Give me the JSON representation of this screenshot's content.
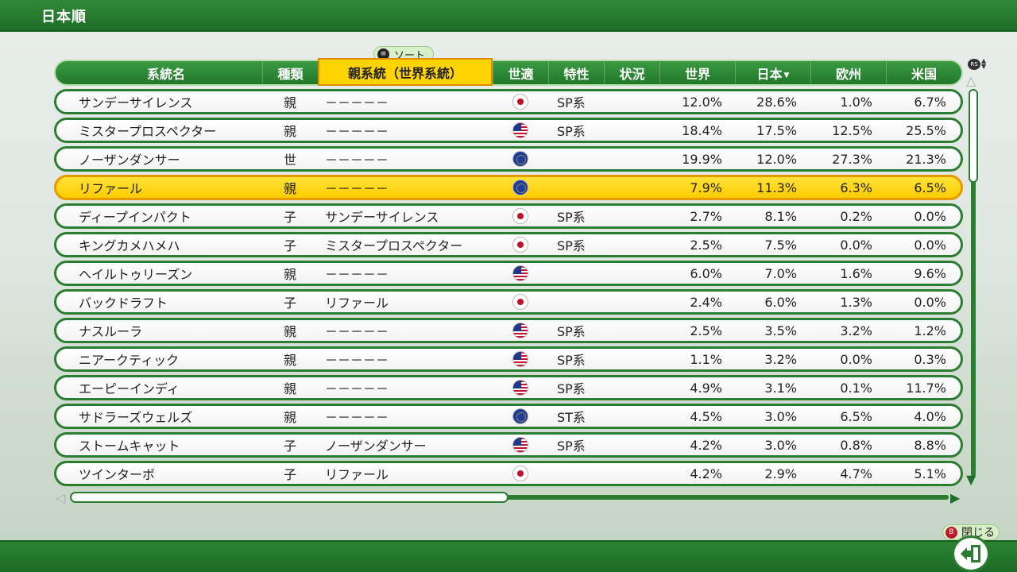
{
  "window": {
    "title": "日本順"
  },
  "sort_hint": {
    "label": "ソート",
    "button": "≡"
  },
  "columns": [
    "系統名",
    "種類",
    "親系統（世界系統）",
    "世適",
    "特性",
    "状況",
    "世界",
    "日本",
    "欧州",
    "米国"
  ],
  "sorted_column_index": 7,
  "sort_direction": "descending",
  "rows": [
    {
      "name": "サンデーサイレンス",
      "kind": "親",
      "parent": "－－－－－",
      "flag": "jp",
      "trait": "SP系",
      "world": "12.0%",
      "japan": "28.6%",
      "europe": "1.0%",
      "us": "6.7%"
    },
    {
      "name": "ミスタープロスペクター",
      "kind": "親",
      "parent": "－－－－－",
      "flag": "us",
      "trait": "SP系",
      "world": "18.4%",
      "japan": "17.5%",
      "europe": "12.5%",
      "us": "25.5%"
    },
    {
      "name": "ノーザンダンサー",
      "kind": "世",
      "parent": "－－－－－",
      "flag": "eu",
      "trait": "",
      "world": "19.9%",
      "japan": "12.0%",
      "europe": "27.3%",
      "us": "21.3%"
    },
    {
      "name": "リファール",
      "kind": "親",
      "parent": "－－－－－",
      "flag": "eu",
      "trait": "",
      "world": "7.9%",
      "japan": "11.3%",
      "europe": "6.3%",
      "us": "6.5%"
    },
    {
      "name": "ディープインパクト",
      "kind": "子",
      "parent": "サンデーサイレンス",
      "flag": "jp",
      "trait": "SP系",
      "world": "2.7%",
      "japan": "8.1%",
      "europe": "0.2%",
      "us": "0.0%"
    },
    {
      "name": "キングカメハメハ",
      "kind": "子",
      "parent": "ミスタープロスペクター",
      "flag": "jp",
      "trait": "SP系",
      "world": "2.5%",
      "japan": "7.5%",
      "europe": "0.0%",
      "us": "0.0%"
    },
    {
      "name": "ヘイルトゥリーズン",
      "kind": "親",
      "parent": "－－－－－",
      "flag": "us",
      "trait": "",
      "world": "6.0%",
      "japan": "7.0%",
      "europe": "1.6%",
      "us": "9.6%"
    },
    {
      "name": "バックドラフト",
      "kind": "子",
      "parent": "リファール",
      "flag": "jp",
      "trait": "",
      "world": "2.4%",
      "japan": "6.0%",
      "europe": "1.3%",
      "us": "0.0%"
    },
    {
      "name": "ナスルーラ",
      "kind": "親",
      "parent": "－－－－－",
      "flag": "us",
      "trait": "SP系",
      "world": "2.5%",
      "japan": "3.5%",
      "europe": "3.2%",
      "us": "1.2%"
    },
    {
      "name": "ニアークティック",
      "kind": "親",
      "parent": "－－－－－",
      "flag": "us",
      "trait": "SP系",
      "world": "1.1%",
      "japan": "3.2%",
      "europe": "0.0%",
      "us": "0.3%"
    },
    {
      "name": "エーピーインディ",
      "kind": "親",
      "parent": "－－－－－",
      "flag": "us",
      "trait": "SP系",
      "world": "4.9%",
      "japan": "3.1%",
      "europe": "0.1%",
      "us": "11.7%"
    },
    {
      "name": "サドラーズウェルズ",
      "kind": "親",
      "parent": "－－－－－",
      "flag": "eu",
      "trait": "ST系",
      "world": "4.5%",
      "japan": "3.0%",
      "europe": "6.5%",
      "us": "4.0%"
    },
    {
      "name": "ストームキャット",
      "kind": "子",
      "parent": "ノーザンダンサー",
      "flag": "us",
      "trait": "SP系",
      "world": "4.2%",
      "japan": "3.0%",
      "europe": "0.8%",
      "us": "8.8%"
    },
    {
      "name": "ツインターボ",
      "kind": "子",
      "parent": "リファール",
      "flag": "jp",
      "trait": "",
      "world": "4.2%",
      "japan": "2.9%",
      "europe": "4.7%",
      "us": "5.1%"
    }
  ],
  "selected_row_index": 3,
  "scroll": {
    "rs_label": "RS"
  },
  "close": {
    "label": "閉じる",
    "button": "B"
  },
  "colors": {
    "header_green": "#2a7d31",
    "selected_yellow": "#ffd400",
    "topbar_green": "#2f8a37"
  }
}
